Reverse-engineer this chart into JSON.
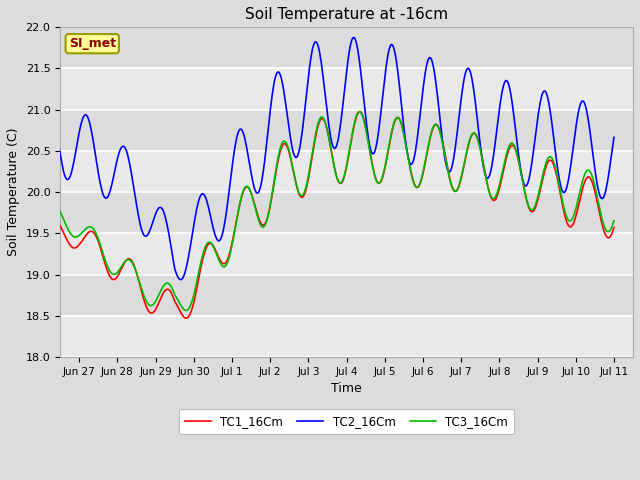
{
  "title": "Soil Temperature at -16cm",
  "xlabel": "Time",
  "ylabel": "Soil Temperature (C)",
  "ylim": [
    18.0,
    22.0
  ],
  "yticks": [
    18.0,
    18.5,
    19.0,
    19.5,
    20.0,
    20.5,
    21.0,
    21.5,
    22.0
  ],
  "annotation_text": "SI_met",
  "annotation_color": "#8B0000",
  "annotation_bg": "#FFFF99",
  "annotation_border": "#999900",
  "line_colors": {
    "TC1_16Cm": "#FF0000",
    "TC2_16Cm": "#0000FF",
    "TC3_16Cm": "#00BB00"
  },
  "line_width": 1.2,
  "fig_bg_color": "#DCDCDC",
  "plot_bg_color": "#DCDCDC",
  "grid_color": "#FFFFFF",
  "xtick_labels": [
    "Jun 27",
    "Jun 28",
    "Jun 29",
    "Jun 30",
    "Jul 1",
    "Jul 2",
    "Jul 3",
    "Jul 4",
    "Jul 5",
    "Jul 6",
    "Jul 7",
    "Jul 8",
    "Jul 9",
    "Jul 10",
    "Jul 11"
  ]
}
